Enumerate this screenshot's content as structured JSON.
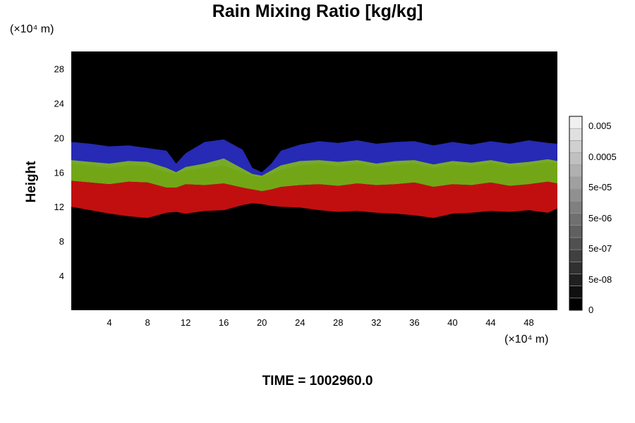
{
  "title": "Rain Mixing Ratio [kg/kg]",
  "y_unit": "(×10⁴ m)",
  "x_unit": "(×10⁴ m)",
  "time_label": "TIME = 1002960.0",
  "chart_data": {
    "type": "heatmap",
    "title": "Rain Mixing Ratio [kg/kg]",
    "xlabel": "",
    "ylabel": "Height",
    "xlim": [
      0,
      51
    ],
    "ylim": [
      0,
      30
    ],
    "xticks": [
      "4",
      "8",
      "12",
      "16",
      "20",
      "24",
      "28",
      "32",
      "36",
      "40",
      "44",
      "48"
    ],
    "yticks": [
      "4",
      "8",
      "12",
      "16",
      "20",
      "24",
      "28"
    ],
    "colorbar": {
      "labels": [
        "0.005",
        "0.0005",
        "5e-05",
        "5e-06",
        "5e-07",
        "5e-08",
        "0"
      ],
      "levels": 16
    },
    "layers": [
      {
        "color": "#2a2fc8",
        "x": [
          0,
          2,
          4,
          6,
          8,
          10,
          11,
          12,
          14,
          16,
          18,
          19,
          20,
          21,
          22,
          24,
          26,
          28,
          30,
          32,
          34,
          36,
          38,
          40,
          42,
          44,
          46,
          48,
          50,
          51
        ],
        "top": [
          19.5,
          19.3,
          19.0,
          19.1,
          18.8,
          18.5,
          17.0,
          18.2,
          19.5,
          19.8,
          18.6,
          16.5,
          16.0,
          17.0,
          18.5,
          19.2,
          19.6,
          19.4,
          19.7,
          19.3,
          19.5,
          19.6,
          19.1,
          19.5,
          19.2,
          19.6,
          19.3,
          19.7,
          19.4,
          19.3
        ],
        "bottom": [
          17.0,
          16.8,
          16.5,
          16.8,
          16.7,
          16.0,
          15.8,
          16.2,
          16.5,
          16.8,
          16.0,
          15.5,
          15.5,
          15.8,
          16.3,
          16.8,
          17.0,
          16.7,
          17.0,
          16.6,
          16.9,
          17.0,
          16.5,
          16.9,
          16.7,
          17.1,
          16.6,
          16.8,
          17.2,
          17.0
        ]
      },
      {
        "color": "#7fb81a",
        "x": [
          0,
          2,
          4,
          6,
          8,
          10,
          11,
          12,
          14,
          16,
          18,
          19,
          20,
          21,
          22,
          24,
          26,
          28,
          30,
          32,
          34,
          36,
          38,
          40,
          42,
          44,
          46,
          48,
          50,
          51
        ],
        "top": [
          17.4,
          17.2,
          17.0,
          17.3,
          17.2,
          16.5,
          16.0,
          16.6,
          17.0,
          17.6,
          16.4,
          15.8,
          15.6,
          16.2,
          16.8,
          17.3,
          17.4,
          17.2,
          17.4,
          17.0,
          17.3,
          17.4,
          16.9,
          17.3,
          17.1,
          17.4,
          17.0,
          17.2,
          17.5,
          17.3
        ],
        "bottom": [
          15.0,
          14.8,
          14.6,
          14.9,
          14.8,
          14.2,
          14.2,
          14.6,
          14.5,
          14.7,
          14.2,
          14.0,
          13.8,
          14.0,
          14.3,
          14.5,
          14.6,
          14.4,
          14.7,
          14.5,
          14.6,
          14.8,
          14.3,
          14.6,
          14.5,
          14.8,
          14.4,
          14.6,
          14.9,
          14.7
        ]
      },
      {
        "color": "#d61111",
        "x": [
          0,
          2,
          4,
          6,
          8,
          10,
          11,
          12,
          14,
          16,
          18,
          19,
          20,
          21,
          22,
          24,
          26,
          28,
          30,
          32,
          34,
          36,
          38,
          40,
          42,
          44,
          46,
          48,
          50,
          51
        ],
        "top": [
          15.0,
          14.8,
          14.6,
          14.9,
          14.8,
          14.2,
          14.2,
          14.6,
          14.5,
          14.7,
          14.2,
          14.0,
          13.8,
          14.0,
          14.3,
          14.5,
          14.6,
          14.4,
          14.7,
          14.5,
          14.6,
          14.8,
          14.3,
          14.6,
          14.5,
          14.8,
          14.4,
          14.6,
          14.9,
          14.7
        ],
        "bottom": [
          12.0,
          11.6,
          11.2,
          10.9,
          10.7,
          11.3,
          11.4,
          11.2,
          11.5,
          11.6,
          12.2,
          12.4,
          12.3,
          12.1,
          12.0,
          11.9,
          11.6,
          11.4,
          11.5,
          11.3,
          11.2,
          11.0,
          10.7,
          11.2,
          11.3,
          11.5,
          11.4,
          11.6,
          11.3,
          11.8
        ]
      }
    ]
  }
}
